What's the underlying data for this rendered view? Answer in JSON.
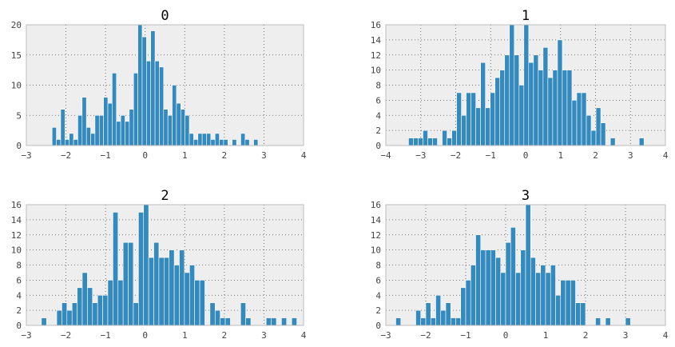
{
  "chart_data": [
    {
      "type": "bar",
      "title": "0",
      "xlim": [
        -3,
        4
      ],
      "ylim": [
        0,
        20
      ],
      "xticks": [
        "−3",
        "−2",
        "−1",
        "0",
        "1",
        "2",
        "3",
        "4"
      ],
      "yticks": [
        "0",
        "5",
        "10",
        "15",
        "20"
      ],
      "bins_start": -2.35,
      "bin_width": 0.1083,
      "values": [
        3,
        1,
        6,
        1,
        2,
        1,
        5,
        8,
        3,
        2,
        5,
        5,
        8,
        7,
        12,
        4,
        5,
        4,
        6,
        12,
        20,
        18,
        14,
        19,
        14,
        13,
        6,
        5,
        10,
        7,
        6,
        5,
        2,
        1,
        2,
        2,
        2,
        1,
        2,
        1,
        1,
        0,
        1,
        0,
        2,
        1,
        0,
        1
      ]
    },
    {
      "type": "bar",
      "title": "1",
      "xlim": [
        -4,
        4
      ],
      "ylim": [
        0,
        16
      ],
      "xticks": [
        "−4",
        "−3",
        "−2",
        "−1",
        "0",
        "1",
        "2",
        "3",
        "4"
      ],
      "yticks": [
        "0",
        "2",
        "4",
        "6",
        "8",
        "10",
        "12",
        "14",
        "16"
      ],
      "bins_start": -3.35,
      "bin_width": 0.1375,
      "values": [
        1,
        1,
        1,
        2,
        1,
        1,
        0,
        2,
        1,
        2,
        7,
        4,
        7,
        7,
        5,
        11,
        5,
        7,
        9,
        10,
        12,
        16,
        12,
        8,
        16,
        11,
        12,
        10,
        13,
        9,
        10,
        14,
        10,
        10,
        6,
        7,
        7,
        4,
        2,
        5,
        3,
        0,
        1,
        0,
        0,
        0,
        0,
        0,
        1
      ]
    },
    {
      "type": "bar",
      "title": "2",
      "xlim": [
        -3,
        4
      ],
      "ylim": [
        0,
        16
      ],
      "xticks": [
        "−3",
        "−2",
        "−1",
        "0",
        "1",
        "2",
        "3",
        "4"
      ],
      "yticks": [
        "0",
        "2",
        "4",
        "6",
        "8",
        "10",
        "12",
        "14",
        "16"
      ],
      "bins_start": -2.62,
      "bin_width": 0.129,
      "values": [
        1,
        0,
        0,
        2,
        3,
        2,
        3,
        5,
        7,
        5,
        3,
        4,
        4,
        6,
        15,
        6,
        11,
        11,
        3,
        15,
        16,
        9,
        11,
        9,
        9,
        10,
        8,
        10,
        7,
        8,
        6,
        6,
        0,
        3,
        2,
        1,
        1,
        0,
        0,
        3,
        1,
        0,
        0,
        0,
        1,
        1,
        0,
        1,
        0,
        1
      ]
    },
    {
      "type": "bar",
      "title": "3",
      "xlim": [
        -3,
        4
      ],
      "ylim": [
        0,
        16
      ],
      "xticks": [
        "−3",
        "−2",
        "−1",
        "0",
        "1",
        "2",
        "3",
        "4"
      ],
      "yticks": [
        "0",
        "2",
        "4",
        "6",
        "8",
        "10",
        "12",
        "14",
        "16"
      ],
      "bins_start": -2.75,
      "bin_width": 0.125,
      "values": [
        1,
        0,
        0,
        0,
        2,
        1,
        3,
        1,
        4,
        2,
        3,
        1,
        1,
        5,
        6,
        8,
        12,
        10,
        10,
        10,
        9,
        7,
        11,
        13,
        7,
        10,
        16,
        9,
        7,
        8,
        7,
        8,
        4,
        6,
        6,
        6,
        3,
        3,
        0,
        0,
        1,
        0,
        1,
        0,
        0,
        0,
        1
      ]
    }
  ]
}
